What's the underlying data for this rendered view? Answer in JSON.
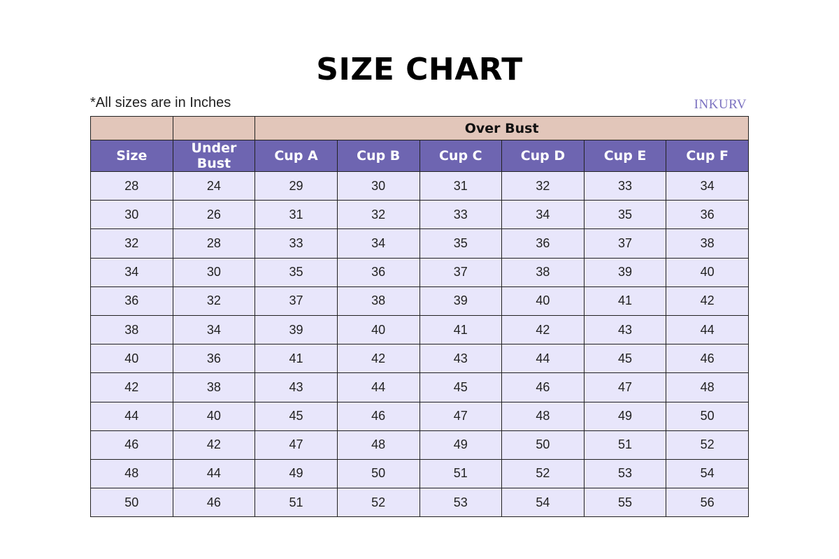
{
  "title": "SIZE CHART",
  "note": "*All sizes are in Inches",
  "logo": "INKURV",
  "colors": {
    "group_header": "#e2c6ba",
    "column_header": "#6e65b1",
    "row_bg": "#e8e6fb",
    "logo": "#7b71c0"
  },
  "table": {
    "group_header": "Over Bust",
    "columns": [
      "Size",
      "Under Bust",
      "Cup A",
      "Cup B",
      "Cup C",
      "Cup D",
      "Cup E",
      "Cup F"
    ],
    "rows": [
      [
        "28",
        "24",
        "29",
        "30",
        "31",
        "32",
        "33",
        "34"
      ],
      [
        "30",
        "26",
        "31",
        "32",
        "33",
        "34",
        "35",
        "36"
      ],
      [
        "32",
        "28",
        "33",
        "34",
        "35",
        "36",
        "37",
        "38"
      ],
      [
        "34",
        "30",
        "35",
        "36",
        "37",
        "38",
        "39",
        "40"
      ],
      [
        "36",
        "32",
        "37",
        "38",
        "39",
        "40",
        "41",
        "42"
      ],
      [
        "38",
        "34",
        "39",
        "40",
        "41",
        "42",
        "43",
        "44"
      ],
      [
        "40",
        "36",
        "41",
        "42",
        "43",
        "44",
        "45",
        "46"
      ],
      [
        "42",
        "38",
        "43",
        "44",
        "45",
        "46",
        "47",
        "48"
      ],
      [
        "44",
        "40",
        "45",
        "46",
        "47",
        "48",
        "49",
        "50"
      ],
      [
        "46",
        "42",
        "47",
        "48",
        "49",
        "50",
        "51",
        "52"
      ],
      [
        "48",
        "44",
        "49",
        "50",
        "51",
        "52",
        "53",
        "54"
      ],
      [
        "50",
        "46",
        "51",
        "52",
        "53",
        "54",
        "55",
        "56"
      ]
    ]
  }
}
